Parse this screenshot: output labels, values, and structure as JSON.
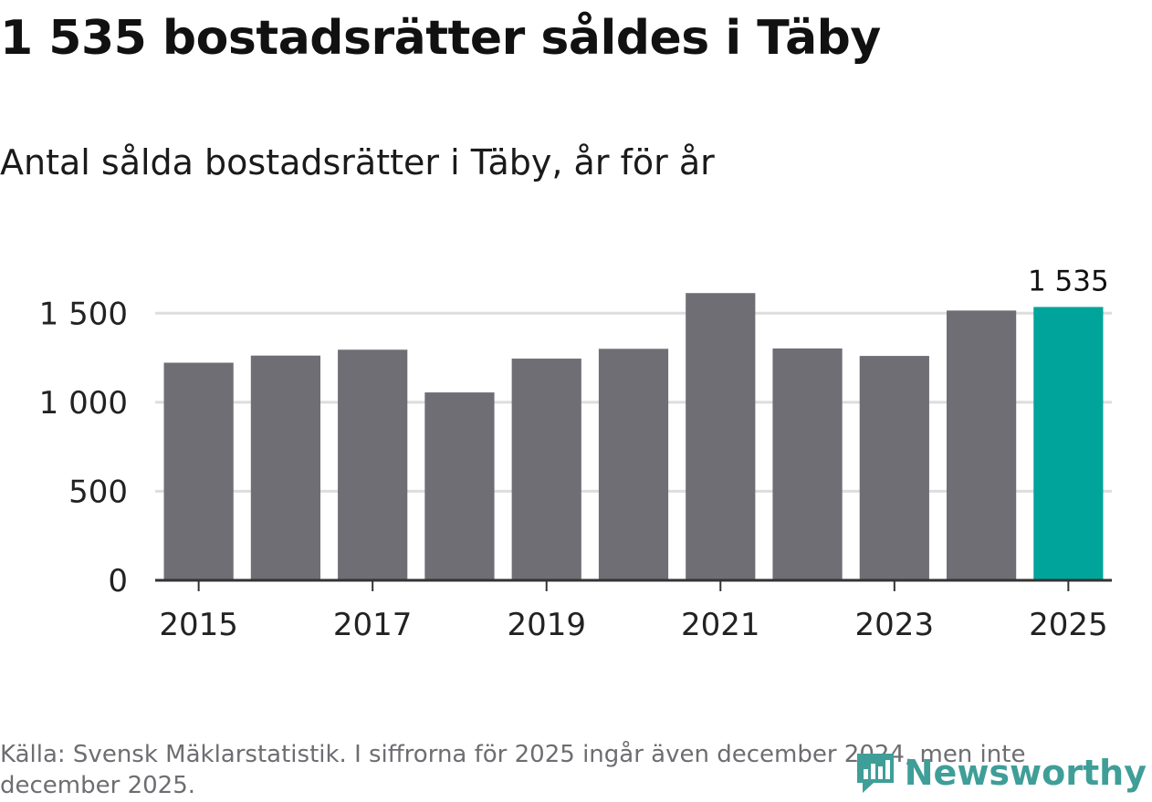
{
  "header": {
    "title": "1 535 bostadsrätter såldes i Täby",
    "subtitle": "Antal sålda bostadsrätter i Täby, år för år"
  },
  "footer": {
    "source": "Källa: Svensk Mäklarstatistik. I siffrorna för 2025 ingår även december 2024, men inte december 2025.",
    "brand_name": "Newsworthy",
    "brand_icon": "newsworthy-logo-icon"
  },
  "colors": {
    "bar": "#6f6e75",
    "highlight": "#00a49a",
    "grid": "#dddddd",
    "axis": "#333333",
    "text": "#222222"
  },
  "chart_data": {
    "type": "bar",
    "title": "Antal sålda bostadsrätter i Täby, år för år",
    "xlabel": "",
    "ylabel": "",
    "categories": [
      "2015",
      "2016",
      "2017",
      "2018",
      "2019",
      "2020",
      "2021",
      "2022",
      "2023",
      "2024",
      "2025"
    ],
    "values": [
      1222,
      1262,
      1295,
      1055,
      1245,
      1300,
      1613,
      1302,
      1260,
      1515,
      1535
    ],
    "highlight_index": 10,
    "data_labels": [
      {
        "index": 10,
        "text": "1 535"
      }
    ],
    "ylim": [
      0,
      1650
    ],
    "y_ticks": [
      0,
      500,
      1000,
      1500
    ],
    "y_tick_labels": [
      "0",
      "500",
      "1 000",
      "1 500"
    ],
    "x_tick_labels": [
      "2015",
      "2017",
      "2019",
      "2021",
      "2023",
      "2025"
    ],
    "grid": true,
    "legend": "none"
  }
}
